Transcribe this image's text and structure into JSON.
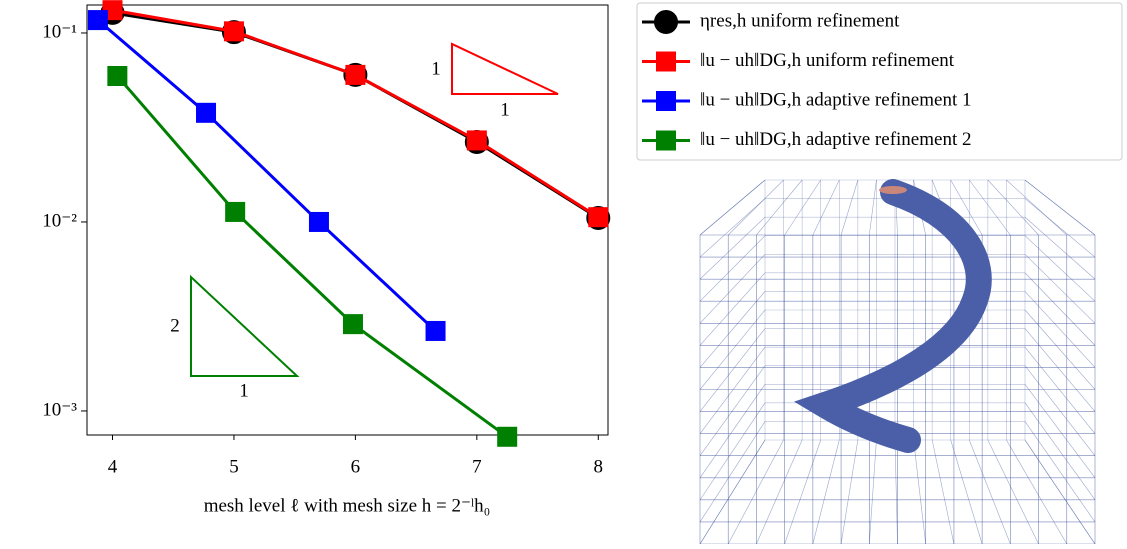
{
  "chart_data": {
    "type": "line",
    "xlabel": "mesh level ℓ with mesh size h = 2⁻ˡh₀",
    "xlim": [
      3.79,
      8.08
    ],
    "xticks": [
      4,
      5,
      6,
      7,
      8
    ],
    "ylim": [
      0.000746,
      0.1406
    ],
    "log_y": true,
    "yticks": [
      {
        "value": 0.1,
        "label": "10⁻¹"
      },
      {
        "value": 0.01,
        "label": "10⁻²"
      },
      {
        "value": 0.001,
        "label": "10⁻³"
      }
    ],
    "series": [
      {
        "name": "ηres,h uniform refinement",
        "color": "#000000",
        "marker": "circle",
        "x": [
          4,
          5,
          6,
          7,
          8
        ],
        "values": [
          0.1277,
          0.101,
          0.06,
          0.0265,
          0.0105
        ]
      },
      {
        "name": "‖u − uh‖DG,h uniform refinement",
        "color": "#ff0000",
        "marker": "square",
        "x": [
          4,
          5,
          6,
          7,
          8
        ],
        "values": [
          0.132,
          0.102,
          0.06,
          0.027,
          0.0106
        ]
      },
      {
        "name": "‖u − uh‖DG,h adaptive refinement 1",
        "color": "#0000ff",
        "marker": "square",
        "x": [
          3.88,
          4.77,
          5.7,
          6.66
        ],
        "values": [
          0.117,
          0.0378,
          0.01,
          0.00265
        ]
      },
      {
        "name": "‖u − uh‖DG,h adaptive refinement 2",
        "color": "#008000",
        "marker": "square",
        "x": [
          4.04,
          5.01,
          5.98,
          7.25
        ],
        "values": [
          0.0592,
          0.0113,
          0.00288,
          0.00073
        ]
      }
    ],
    "annotations": [
      "1",
      "1",
      "2",
      "1"
    ]
  }
}
